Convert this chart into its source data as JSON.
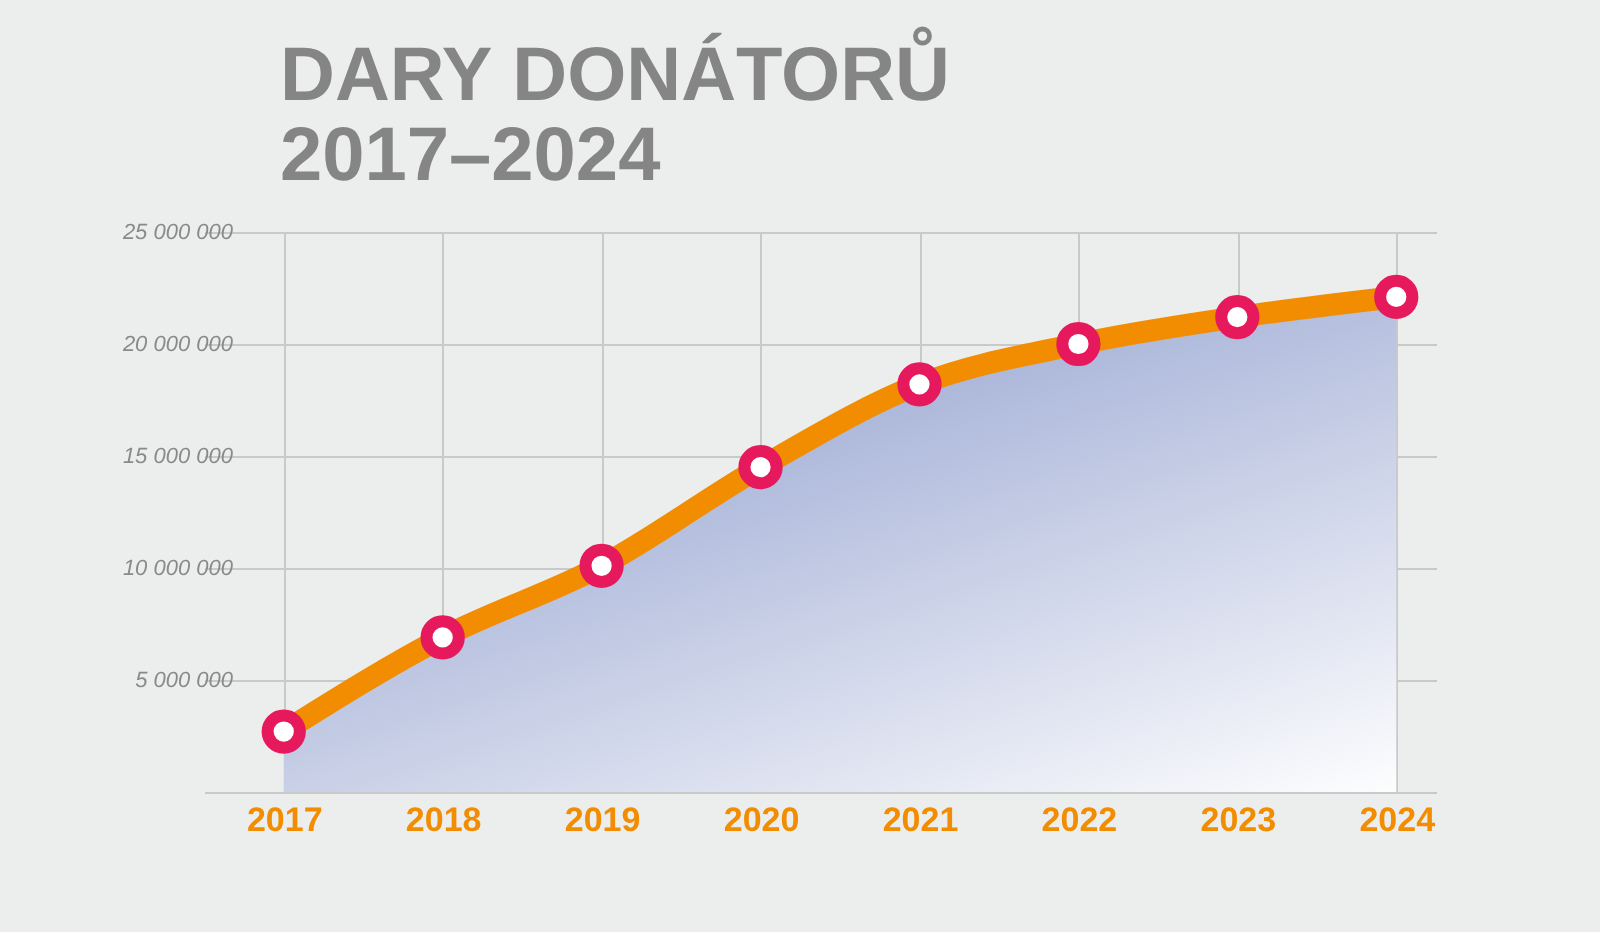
{
  "chart_data": {
    "type": "area",
    "title": "DARY DONÁTORŮ",
    "subtitle": "2017–2024",
    "categories": [
      "2017",
      "2018",
      "2019",
      "2020",
      "2021",
      "2022",
      "2023",
      "2024"
    ],
    "series": [
      {
        "color": "#f28c00",
        "values": [
          2700000,
          6900000,
          10100000,
          14500000,
          18200000,
          20000000,
          21200000,
          22100000
        ]
      }
    ],
    "ylim": [
      0,
      25000000
    ],
    "yticks": [
      {
        "value": 0,
        "label": null
      },
      {
        "value": 5000000,
        "label": "5 000 000"
      },
      {
        "value": 10000000,
        "label": "10 000 000"
      },
      {
        "value": 15000000,
        "label": "15 000 000"
      },
      {
        "value": 20000000,
        "label": "20 000 000"
      },
      {
        "value": 25000000,
        "label": "25 000 000"
      }
    ],
    "grid": true,
    "marker": "circle"
  }
}
